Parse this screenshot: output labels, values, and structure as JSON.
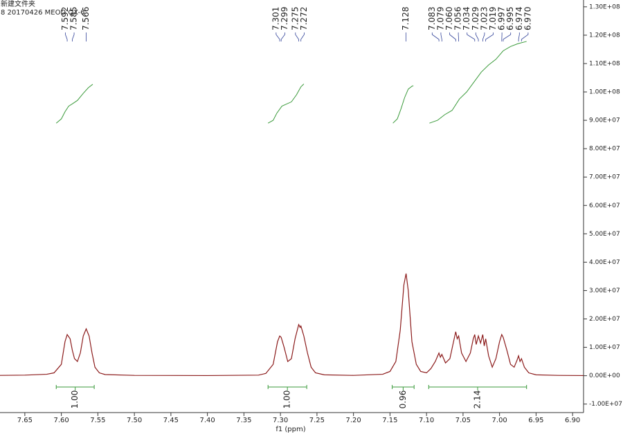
{
  "chart_data": {
    "type": "line",
    "title": "新建文件夹",
    "subtitle": "8 20170426 MEOD QX-6",
    "x_label": "f1 (ppm)",
    "xlim": [
      7.684,
      6.885
    ],
    "ylim": [
      -13000000,
      132400000
    ],
    "xticks": [
      7.65,
      {
        "value": 7.6,
        "label": "7.60"
      },
      7.55,
      {
        "value": 7.5,
        "label": "7.50"
      },
      7.45,
      {
        "value": 7.4,
        "label": "7.40"
      },
      7.35,
      {
        "value": 7.3,
        "label": "7.30"
      },
      7.25,
      {
        "value": 7.2,
        "label": "7.20"
      },
      7.15,
      {
        "value": 7.1,
        "label": "7.10"
      },
      7.05,
      {
        "value": 7,
        "label": "7.00"
      },
      6.95,
      {
        "value": 6.9,
        "label": "6.90"
      }
    ],
    "yticks": [
      {
        "value": 130000000,
        "label": "1.30E+08"
      },
      {
        "value": 120000000,
        "label": "1.20E+08"
      },
      {
        "value": 110000000,
        "label": "1.10E+08"
      },
      {
        "value": 100000000,
        "label": "1.00E+08"
      },
      {
        "value": 90000000,
        "label": "9.00E+07"
      },
      {
        "value": 80000000,
        "label": "8.00E+07"
      },
      {
        "value": 70000000,
        "label": "7.00E+07"
      },
      {
        "value": 60000000,
        "label": "6.00E+07"
      },
      {
        "value": 50000000,
        "label": "5.00E+07"
      },
      {
        "value": 40000000,
        "label": "4.00E+07"
      },
      {
        "value": 30000000,
        "label": "3.00E+07"
      },
      {
        "value": 20000000,
        "label": "2.00E+07"
      },
      {
        "value": 10000000,
        "label": "1.00E+07"
      },
      {
        "value": 0,
        "label": "0.00E+00"
      },
      {
        "value": -10000000,
        "label": "-1.00E+07"
      }
    ],
    "series": [
      {
        "color": "#8b1a1a",
        "x": [
          7.684,
          7.65,
          7.62,
          7.61,
          7.6,
          7.595,
          7.592,
          7.588,
          7.585,
          7.582,
          7.578,
          7.574,
          7.57,
          7.566,
          7.562,
          7.558,
          7.554,
          7.548,
          7.54,
          7.5,
          7.4,
          7.33,
          7.32,
          7.31,
          7.304,
          7.301,
          7.299,
          7.295,
          7.29,
          7.285,
          7.28,
          7.275,
          7.273,
          7.272,
          7.268,
          7.263,
          7.258,
          7.252,
          7.24,
          7.2,
          7.16,
          7.15,
          7.142,
          7.136,
          7.131,
          7.128,
          7.125,
          7.12,
          7.114,
          7.108,
          7.1,
          7.094,
          7.088,
          7.083,
          7.081,
          7.079,
          7.074,
          7.068,
          7.063,
          7.06,
          7.058,
          7.056,
          7.052,
          7.046,
          7.04,
          7.036,
          7.034,
          7.032,
          7.029,
          7.026,
          7.023,
          7.021,
          7.019,
          7.015,
          7.01,
          7.005,
          7.0,
          6.997,
          6.995,
          6.99,
          6.985,
          6.98,
          6.976,
          6.974,
          6.972,
          6.97,
          6.966,
          6.96,
          6.95,
          6.92,
          6.885
        ],
        "values": [
          100000,
          200000,
          500000,
          1000000,
          4000000,
          12000000,
          14500000,
          13000000,
          9000000,
          6000000,
          5000000,
          8000000,
          14000000,
          16500000,
          14000000,
          8000000,
          3000000,
          1000000,
          400000,
          100000,
          50000,
          200000,
          800000,
          4000000,
          12000000,
          14000000,
          13500000,
          10000000,
          5000000,
          6000000,
          13000000,
          18000000,
          17000000,
          17500000,
          14000000,
          8000000,
          3000000,
          1000000,
          300000,
          100000,
          500000,
          1500000,
          5000000,
          16000000,
          32000000,
          36000000,
          30000000,
          12000000,
          4000000,
          1500000,
          1000000,
          2500000,
          5000000,
          8000000,
          6500000,
          7500000,
          4500000,
          6000000,
          12000000,
          15500000,
          13000000,
          14000000,
          8000000,
          5000000,
          8000000,
          13000000,
          14500000,
          11000000,
          14000000,
          11500000,
          14500000,
          10500000,
          13000000,
          7000000,
          3000000,
          6000000,
          12000000,
          14500000,
          13500000,
          9000000,
          4000000,
          3000000,
          5500000,
          7000000,
          5000000,
          6000000,
          3000000,
          1000000,
          300000,
          100000,
          50000
        ]
      }
    ],
    "peak_color": "#33449a",
    "peaks": [
      7.592,
      7.585,
      7.566,
      7.301,
      7.299,
      7.275,
      7.272,
      7.128,
      7.083,
      7.079,
      {
        "value": 7.06,
        "label": "7.060"
      },
      7.056,
      7.034,
      7.029,
      7.023,
      7.019,
      6.997,
      6.995,
      6.974,
      {
        "value": 6.97,
        "label": "6.970"
      }
    ],
    "integral_color": "#3a9a3a",
    "integrals": [
      {
        "x": [
          7.607,
          7.6,
          7.595,
          7.59,
          7.585,
          7.578,
          7.57,
          7.563,
          7.557
        ],
        "values": [
          89000000,
          90500000,
          93000000,
          95000000,
          95800000,
          97000000,
          99500000,
          101500000,
          102700000
        ],
        "range": [
          7.607,
          7.555
        ],
        "label": {
          "value": 1,
          "label": "1.00"
        }
      },
      {
        "x": [
          7.317,
          7.31,
          7.305,
          7.298,
          7.292,
          7.285,
          7.278,
          7.272,
          7.268
        ],
        "values": [
          89000000,
          90000000,
          92500000,
          95000000,
          95700000,
          96500000,
          99000000,
          101800000,
          102800000
        ],
        "range": [
          7.317,
          7.264
        ],
        "label": {
          "value": 1,
          "label": "1.00"
        }
      },
      {
        "x": [
          7.146,
          7.14,
          7.135,
          7.13,
          7.125,
          7.12,
          7.118
        ],
        "values": [
          89000000,
          90500000,
          94000000,
          98000000,
          101000000,
          102000000,
          102200000
        ],
        "range": [
          7.147,
          7.117
        ],
        "label": 0.96
      },
      {
        "x": [
          7.096,
          7.085,
          7.075,
          7.065,
          7.055,
          7.045,
          7.035,
          7.025,
          7.015,
          7.005,
          6.995,
          6.985,
          6.975,
          6.963
        ],
        "values": [
          89000000,
          90000000,
          92000000,
          93500000,
          97500000,
          100000000,
          103500000,
          107000000,
          109500000,
          111500000,
          114500000,
          116000000,
          117000000,
          117800000
        ],
        "range": [
          7.097,
          6.963
        ],
        "label": 2.14
      }
    ]
  }
}
